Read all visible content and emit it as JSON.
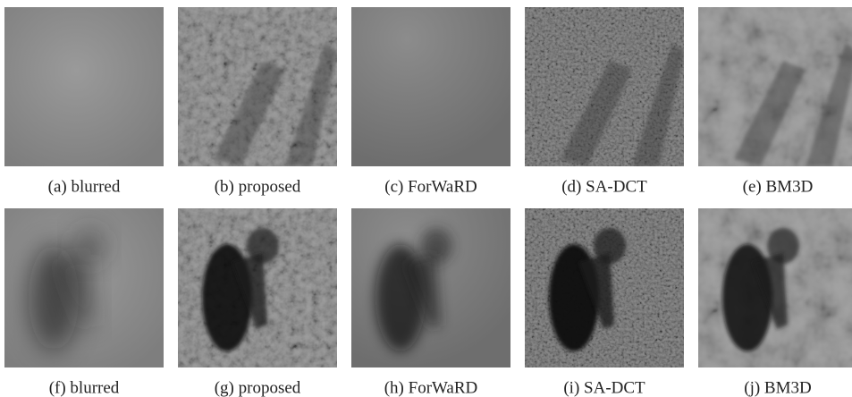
{
  "panels": [
    {
      "caption": "(a) blurred"
    },
    {
      "caption": "(b) proposed"
    },
    {
      "caption": "(c) ForWaRD"
    },
    {
      "caption": "(d) SA-DCT"
    },
    {
      "caption": "(e) BM3D"
    },
    {
      "caption": "(f) blurred"
    },
    {
      "caption": "(g) proposed"
    },
    {
      "caption": "(h) ForWaRD"
    },
    {
      "caption": "(i) SA-DCT"
    },
    {
      "caption": "(j) BM3D"
    }
  ]
}
